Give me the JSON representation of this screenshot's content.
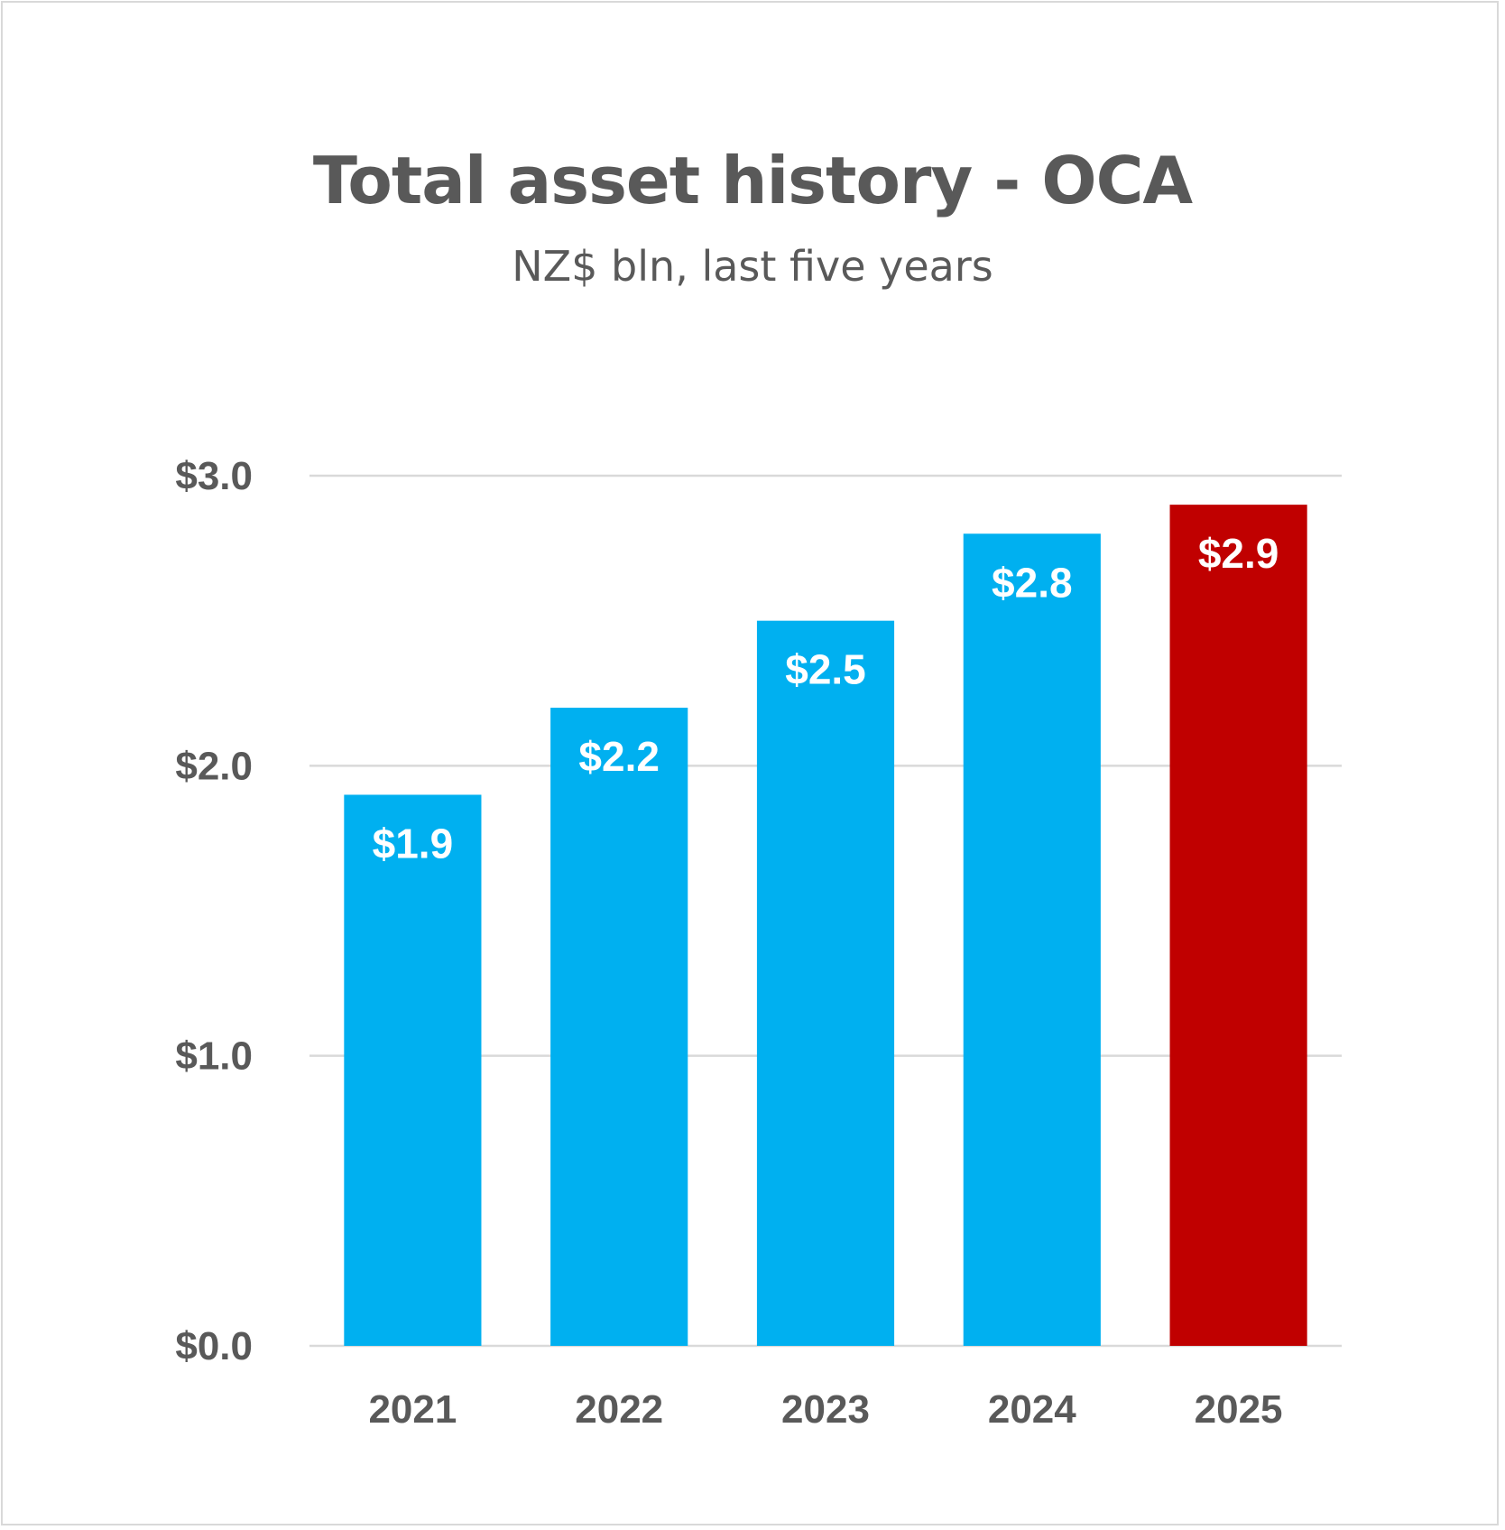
{
  "chart_data": {
    "type": "bar",
    "title": "Total asset history - OCA",
    "subtitle": "NZ$ bln, last five years",
    "categories": [
      "2021",
      "2022",
      "2023",
      "2024",
      "2025"
    ],
    "values": [
      1.9,
      2.2,
      2.5,
      2.8,
      2.9
    ],
    "data_labels": [
      "$1.9",
      "$2.2",
      "$2.5",
      "$2.8",
      "$2.9"
    ],
    "bar_colors": [
      "#00b0f0",
      "#00b0f0",
      "#00b0f0",
      "#00b0f0",
      "#c00000"
    ],
    "ylim": [
      0,
      3
    ],
    "yticks": [
      0,
      1,
      2,
      3
    ],
    "ytick_labels": [
      "$0.0",
      "$1.0",
      "$2.0",
      "$3.0"
    ],
    "grid": true,
    "gridline_color": "#d9d9d9",
    "xlabel": "",
    "ylabel": ""
  }
}
